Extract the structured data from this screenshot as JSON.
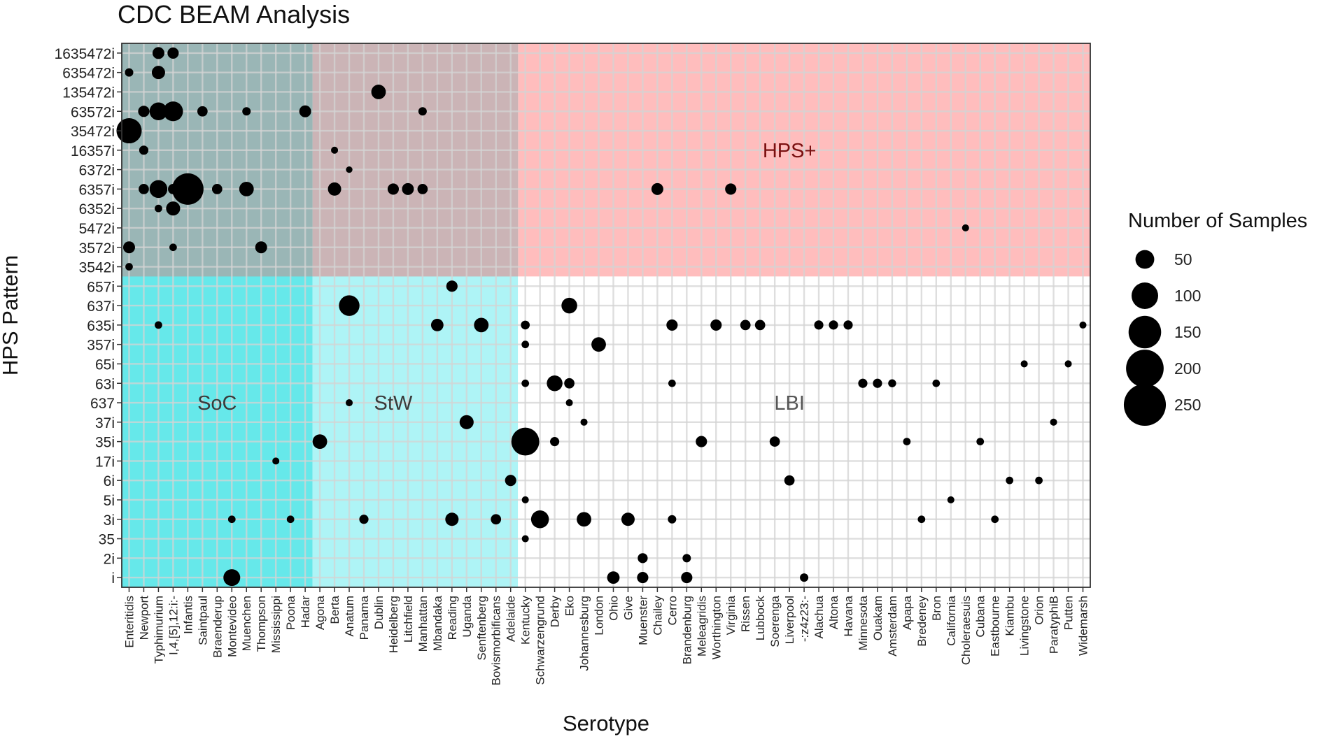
{
  "chart_data": {
    "type": "scatter",
    "title": "CDC BEAM Analysis",
    "xlabel": "Serotype",
    "ylabel": "HPS Pattern",
    "grid": true,
    "x_categories": [
      "Enteritidis",
      "Newport",
      "Typhimurium",
      "I,4,[5],12:i:-",
      "Infantis",
      "Saintpaul",
      "Braenderup",
      "Montevideo",
      "Muenchen",
      "Thompson",
      "Mississippi",
      "Poona",
      "Hadar",
      "Agona",
      "Berta",
      "Anatum",
      "Panama",
      "Dublin",
      "Heidelberg",
      "Litchfield",
      "Manhattan",
      "Mbandaka",
      "Reading",
      "Uganda",
      "Senftenberg",
      "Bovismorbificans",
      "Adelaide",
      "Kentucky",
      "Schwarzengrund",
      "Derby",
      "Eko",
      "Johannesburg",
      "London",
      "Ohio",
      "Give",
      "Muenster",
      "Chailey",
      "Cerro",
      "Brandenburg",
      "Meleagridis",
      "Worthington",
      "Virginia",
      "Rissen",
      "Lubbock",
      "Soerenga",
      "Liverpool",
      "-:z4z23:-",
      "Alachua",
      "Altona",
      "Havana",
      "Minnesota",
      "Ouakam",
      "Amsterdam",
      "Apapa",
      "Bredeney",
      "Bron",
      "California",
      "Choleraesuis",
      "Cubana",
      "Eastbourne",
      "Kiambu",
      "Livingstone",
      "Orion",
      "ParatyphiB",
      "Putten",
      "Widemarsh"
    ],
    "y_categories": [
      "i",
      "2i",
      "35",
      "3i",
      "5i",
      "6i",
      "17i",
      "35i",
      "37i",
      "637",
      "63i",
      "65i",
      "357i",
      "635i",
      "637i",
      "657i",
      "3542i",
      "3572i",
      "5472i",
      "6352i",
      "6357i",
      "6372i",
      "16357i",
      "35472i",
      "63572i",
      "135472i",
      "635472i",
      "1635472i"
    ],
    "regions": [
      {
        "label": "HPS+",
        "x_from": "Enteritidis",
        "x_to": "Widemarsh",
        "y_from": "3542i",
        "y_to": "1635472i",
        "color": "#ffbdbd",
        "label_color": "#7a1010",
        "label_x": "Liverpool",
        "label_y": "16357i"
      },
      {
        "label": "SoC",
        "x_from": "Enteritidis",
        "x_to": "Hadar",
        "y_from": "i",
        "y_to": "1635472i",
        "color": "#66e8ea",
        "label_color": "#3a3a3a",
        "label_x": "Braenderup",
        "label_y": "637"
      },
      {
        "label": "StW",
        "x_from": "Agona",
        "x_to": "Adelaide",
        "y_from": "i",
        "y_to": "1635472i",
        "color": "#aef4f6",
        "label_color": "#3a3a3a",
        "label_x": "Heidelberg",
        "label_y": "637"
      },
      {
        "label": "LBI",
        "x_from": "Kentucky",
        "x_to": "Widemarsh",
        "y_from": "i",
        "y_to": "657i",
        "color": "#ffffff",
        "label_color": "#555555",
        "label_x": "Liverpool",
        "label_y": "637"
      }
    ],
    "size_legend": {
      "title": "Number of Samples",
      "values": [
        50,
        100,
        150,
        200,
        250
      ],
      "labels": [
        "50",
        "100",
        "150",
        "200",
        "250"
      ]
    },
    "points": [
      [
        "Typhimurium",
        "1635472i",
        20
      ],
      [
        "I,4,[5],12:i:-",
        "1635472i",
        18
      ],
      [
        "Enteritidis",
        "635472i",
        10
      ],
      [
        "Typhimurium",
        "635472i",
        25
      ],
      [
        "Dublin",
        "135472i",
        30
      ],
      [
        "Newport",
        "63572i",
        18
      ],
      [
        "Typhimurium",
        "63572i",
        45
      ],
      [
        "I,4,[5],12:i:-",
        "63572i",
        55
      ],
      [
        "Saintpaul",
        "63572i",
        15
      ],
      [
        "Muenchen",
        "63572i",
        10
      ],
      [
        "Hadar",
        "63572i",
        20
      ],
      [
        "Manhattan",
        "63572i",
        10
      ],
      [
        "Enteritidis",
        "35472i",
        90
      ],
      [
        "Newport",
        "16357i",
        12
      ],
      [
        "Berta",
        "16357i",
        7
      ],
      [
        "Anatum",
        "6372i",
        6
      ],
      [
        "Newport",
        "6357i",
        15
      ],
      [
        "Typhimurium",
        "6357i",
        45
      ],
      [
        "I,4,[5],12:i:-",
        "6357i",
        15
      ],
      [
        "Infantis",
        "6357i",
        140
      ],
      [
        "Braenderup",
        "6357i",
        15
      ],
      [
        "Muenchen",
        "6357i",
        30
      ],
      [
        "Berta",
        "6357i",
        25
      ],
      [
        "Heidelberg",
        "6357i",
        18
      ],
      [
        "Litchfield",
        "6357i",
        20
      ],
      [
        "Manhattan",
        "6357i",
        15
      ],
      [
        "Chailey",
        "6357i",
        20
      ],
      [
        "Virginia",
        "6357i",
        18
      ],
      [
        "Typhimurium",
        "6352i",
        8
      ],
      [
        "I,4,[5],12:i:-",
        "6352i",
        28
      ],
      [
        "Choleraesuis",
        "5472i",
        7
      ],
      [
        "Enteritidis",
        "3572i",
        20
      ],
      [
        "I,4,[5],12:i:-",
        "3572i",
        8
      ],
      [
        "Thompson",
        "3572i",
        20
      ],
      [
        "Enteritidis",
        "3542i",
        8
      ],
      [
        "Reading",
        "657i",
        18
      ],
      [
        "Anatum",
        "637i",
        60
      ],
      [
        "Eko",
        "637i",
        35
      ],
      [
        "Typhimurium",
        "635i",
        8
      ],
      [
        "Mbandaka",
        "635i",
        22
      ],
      [
        "Senftenberg",
        "635i",
        30
      ],
      [
        "Kentucky",
        "635i",
        11
      ],
      [
        "Cerro",
        "635i",
        18
      ],
      [
        "Worthington",
        "635i",
        18
      ],
      [
        "Rissen",
        "635i",
        15
      ],
      [
        "Lubbock",
        "635i",
        15
      ],
      [
        "Alachua",
        "635i",
        12
      ],
      [
        "Altona",
        "635i",
        12
      ],
      [
        "Havana",
        "635i",
        12
      ],
      [
        "Widemarsh",
        "635i",
        7
      ],
      [
        "Kentucky",
        "357i",
        8
      ],
      [
        "London",
        "357i",
        30
      ],
      [
        "Livingstone",
        "65i",
        7
      ],
      [
        "Putten",
        "65i",
        7
      ],
      [
        "Kentucky",
        "63i",
        8
      ],
      [
        "Derby",
        "63i",
        35
      ],
      [
        "Eko",
        "63i",
        15
      ],
      [
        "Cerro",
        "63i",
        8
      ],
      [
        "Minnesota",
        "63i",
        12
      ],
      [
        "Ouakam",
        "63i",
        12
      ],
      [
        "Amsterdam",
        "63i",
        9
      ],
      [
        "Bron",
        "63i",
        8
      ],
      [
        "Anatum",
        "637",
        7
      ],
      [
        "Eko",
        "637",
        7
      ],
      [
        "Uganda",
        "37i",
        28
      ],
      [
        "Johannesburg",
        "37i",
        7
      ],
      [
        "ParatyphiB",
        "37i",
        7
      ],
      [
        "Agona",
        "35i",
        30
      ],
      [
        "Kentucky",
        "35i",
        110
      ],
      [
        "Derby",
        "35i",
        12
      ],
      [
        "Meleagridis",
        "35i",
        18
      ],
      [
        "Soerenga",
        "35i",
        15
      ],
      [
        "Apapa",
        "35i",
        8
      ],
      [
        "Cubana",
        "35i",
        8
      ],
      [
        "Mississippi",
        "17i",
        7
      ],
      [
        "Adelaide",
        "6i",
        18
      ],
      [
        "Liverpool",
        "6i",
        15
      ],
      [
        "Kiambu",
        "6i",
        8
      ],
      [
        "Orion",
        "6i",
        8
      ],
      [
        "Kentucky",
        "5i",
        7
      ],
      [
        "California",
        "5i",
        7
      ],
      [
        "Montevideo",
        "3i",
        8
      ],
      [
        "Poona",
        "3i",
        8
      ],
      [
        "Panama",
        "3i",
        12
      ],
      [
        "Reading",
        "3i",
        25
      ],
      [
        "Bovismorbificans",
        "3i",
        15
      ],
      [
        "Schwarzengrund",
        "3i",
        45
      ],
      [
        "Johannesburg",
        "3i",
        30
      ],
      [
        "Give",
        "3i",
        25
      ],
      [
        "Cerro",
        "3i",
        10
      ],
      [
        "Bredeney",
        "3i",
        8
      ],
      [
        "Eastbourne",
        "3i",
        8
      ],
      [
        "Kentucky",
        "35",
        7
      ],
      [
        "Muenster",
        "2i",
        14
      ],
      [
        "Brandenburg",
        "2i",
        10
      ],
      [
        "Montevideo",
        "i",
        40
      ],
      [
        "Ohio",
        "i",
        22
      ],
      [
        "Muenster",
        "i",
        18
      ],
      [
        "Brandenburg",
        "i",
        18
      ],
      [
        "-:z4z23:-",
        "i",
        10
      ]
    ]
  }
}
